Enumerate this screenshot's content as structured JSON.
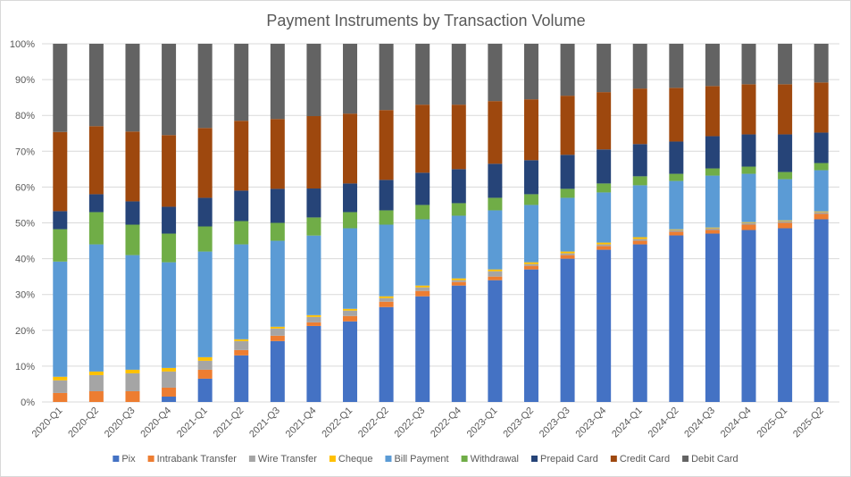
{
  "chart_data": {
    "type": "bar",
    "stacked": "percent",
    "title": "Payment Instruments by Transaction Volume",
    "xlabel": "",
    "ylabel": "",
    "ylim": [
      0,
      100
    ],
    "yticks": [
      "0%",
      "10%",
      "20%",
      "30%",
      "40%",
      "50%",
      "60%",
      "70%",
      "80%",
      "90%",
      "100%"
    ],
    "grid": true,
    "legend_position": "bottom",
    "categories": [
      "2020-Q1",
      "2020-Q2",
      "2020-Q3",
      "2020-Q4",
      "2021-Q1",
      "2021-Q2",
      "2021-Q3",
      "2021-Q4",
      "2022-Q1",
      "2022-Q2",
      "2022-Q3",
      "2022-Q4",
      "2023-Q1",
      "2023-Q2",
      "2023-Q3",
      "2023-Q4",
      "2024-Q1",
      "2024-Q2",
      "2024-Q3",
      "2024-Q4",
      "2025-Q1",
      "2025-Q2"
    ],
    "series": [
      {
        "name": "Pix",
        "color": "#4472c4",
        "values": [
          0,
          0,
          0,
          1.5,
          6.5,
          13,
          17,
          21,
          22.5,
          26.5,
          29.5,
          32.5,
          34,
          37,
          40,
          42.5,
          44,
          46.5,
          47,
          48,
          48.5,
          51
        ]
      },
      {
        "name": "Intrabank Transfer",
        "color": "#ed7d31",
        "values": [
          2.5,
          3,
          3,
          2.5,
          2.5,
          1.5,
          1.5,
          1,
          1.5,
          1.5,
          1.5,
          1,
          1,
          1,
          1,
          1,
          1,
          1,
          1,
          1.5,
          1.5,
          1.5
        ]
      },
      {
        "name": "Wire Transfer",
        "color": "#a5a5a5",
        "values": [
          3.5,
          4.5,
          5,
          4.5,
          2.5,
          2.5,
          2,
          1.5,
          1.5,
          1,
          1,
          0.5,
          1.5,
          0.5,
          0.5,
          0.5,
          0.5,
          0.5,
          0.5,
          0.5,
          0.5,
          0.5
        ]
      },
      {
        "name": "Cheque",
        "color": "#ffc000",
        "values": [
          1,
          1,
          1,
          1,
          1,
          0.5,
          0.5,
          0.5,
          0.5,
          0.5,
          0.5,
          0.5,
          0.5,
          0.5,
          0.5,
          0.5,
          0.5,
          0.2,
          0.2,
          0.2,
          0.2,
          0.2
        ]
      },
      {
        "name": "Bill Payment",
        "color": "#5b9bd5",
        "values": [
          32,
          35.5,
          32,
          29.5,
          29.5,
          26.5,
          24,
          22,
          22.5,
          20,
          18.5,
          17.5,
          16.5,
          16,
          15,
          14,
          14.5,
          13.5,
          14.5,
          13.5,
          11.5,
          11.5
        ]
      },
      {
        "name": "Withdrawal",
        "color": "#70ad47",
        "values": [
          9,
          9,
          8.5,
          8,
          7,
          6.5,
          5,
          5,
          4.5,
          4,
          4,
          3.5,
          3.5,
          3,
          2.5,
          2.5,
          2.5,
          2,
          2,
          2,
          2,
          2
        ]
      },
      {
        "name": "Prepaid Card",
        "color": "#264478",
        "values": [
          5,
          5,
          6.5,
          7.5,
          8,
          8.5,
          9.5,
          8,
          8,
          8.5,
          9,
          9.5,
          9.5,
          9.5,
          9.5,
          9.5,
          9,
          9,
          9,
          9,
          10.5,
          8.5
        ]
      },
      {
        "name": "Credit Card",
        "color": "#9e480e",
        "values": [
          22,
          19,
          19.5,
          20,
          19.5,
          19.5,
          19.5,
          20,
          19.5,
          19.5,
          19,
          18,
          17.5,
          17,
          16.5,
          16,
          15.5,
          15,
          14,
          14,
          14,
          14
        ]
      },
      {
        "name": "Debit Card",
        "color": "#636363",
        "values": [
          24.5,
          23,
          24.5,
          25.5,
          23.5,
          21.5,
          21,
          20,
          19.5,
          18.5,
          17,
          17,
          16,
          15.5,
          14.5,
          13.5,
          12.5,
          12.3,
          11.8,
          11.3,
          11.3,
          10.8
        ]
      }
    ]
  }
}
